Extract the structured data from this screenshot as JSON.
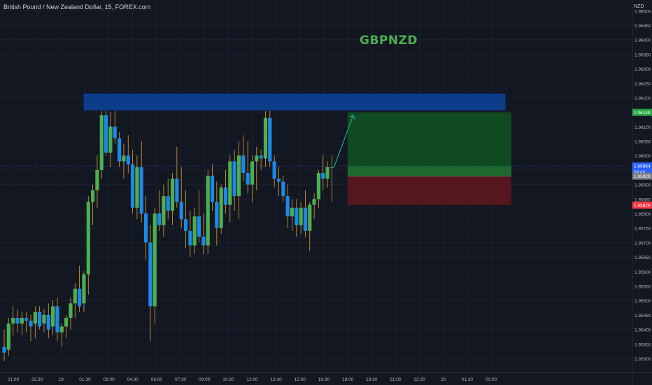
{
  "header": {
    "symbol_title": "British Pound / New Zealand Dollar, 15, FOREX.com",
    "watermark": "GBPNZD"
  },
  "price_axis": {
    "currency": "NZD",
    "ticks": [
      "1.96500",
      "1.96450",
      "1.96400",
      "1.96350",
      "1.96300",
      "1.96250",
      "1.96200",
      "1.96150",
      "1.96100",
      "1.96050",
      "1.96000",
      "1.95950",
      "1.95900",
      "1.95850",
      "1.95800",
      "1.95750",
      "1.95700",
      "1.95650",
      "1.95600",
      "1.95550",
      "1.95500",
      "1.95450",
      "1.95400",
      "1.95350",
      "1.95300"
    ],
    "badges": [
      {
        "label": "1.96149",
        "value": 1.96149,
        "color": "#26a641"
      },
      {
        "label": "1.95964",
        "value": 1.95964,
        "color": "#2962ff"
      },
      {
        "label": "04:44",
        "value": 1.95944,
        "color": "#2962ff"
      },
      {
        "label": "1.95929",
        "value": 1.95929,
        "color": "#787b86"
      },
      {
        "label": "1.95829",
        "value": 1.95829,
        "color": "#f23645"
      }
    ]
  },
  "time_axis": {
    "ticks": [
      "21:00",
      "22:30",
      "19",
      "01:30",
      "03:00",
      "04:30",
      "06:00",
      "07:30",
      "09:00",
      "10:30",
      "12:00",
      "13:30",
      "15:00",
      "16:30",
      "18:00",
      "19:30",
      "21:00",
      "22:30",
      "20",
      "01:30",
      "03:00"
    ]
  },
  "colors": {
    "background": "#131722",
    "up": "#4caf50",
    "down": "#1e88e5",
    "resistance_zone": "#0d3d8a",
    "take_profit_zone": "#0f4d22",
    "stop_loss_zone": "#5a161e",
    "current_price_line": "#2962ff",
    "projection_arrow": "#26a69a"
  },
  "chart_data": {
    "type": "candlestick",
    "symbol": "GBPNZD",
    "timeframe": "15",
    "ylim": [
      1.9529,
      1.9652
    ],
    "x_interval_minutes": 15,
    "current_price": 1.95964,
    "resistance_zone": {
      "low": 1.96155,
      "high": 1.96215
    },
    "position": {
      "type": "long",
      "entry": 1.95929,
      "take_profit": 1.96149,
      "stop_loss": 1.95829
    },
    "candles": [
      {
        "o": 1.9534,
        "h": 1.954,
        "l": 1.9529,
        "c": 1.9532
      },
      {
        "o": 1.9533,
        "h": 1.9544,
        "l": 1.9531,
        "c": 1.9542
      },
      {
        "o": 1.9542,
        "h": 1.9548,
        "l": 1.9538,
        "c": 1.9544
      },
      {
        "o": 1.9544,
        "h": 1.9547,
        "l": 1.9539,
        "c": 1.9542
      },
      {
        "o": 1.9542,
        "h": 1.9546,
        "l": 1.9538,
        "c": 1.9544
      },
      {
        "o": 1.9544,
        "h": 1.9546,
        "l": 1.9539,
        "c": 1.9543
      },
      {
        "o": 1.9543,
        "h": 1.9545,
        "l": 1.9536,
        "c": 1.9541
      },
      {
        "o": 1.9542,
        "h": 1.9548,
        "l": 1.9537,
        "c": 1.9546
      },
      {
        "o": 1.9546,
        "h": 1.9548,
        "l": 1.954,
        "c": 1.9541
      },
      {
        "o": 1.9542,
        "h": 1.9547,
        "l": 1.9539,
        "c": 1.9545
      },
      {
        "o": 1.9545,
        "h": 1.9549,
        "l": 1.9537,
        "c": 1.954
      },
      {
        "o": 1.9541,
        "h": 1.955,
        "l": 1.9538,
        "c": 1.9548
      },
      {
        "o": 1.9548,
        "h": 1.9551,
        "l": 1.9536,
        "c": 1.9539
      },
      {
        "o": 1.9539,
        "h": 1.9542,
        "l": 1.9534,
        "c": 1.9541
      },
      {
        "o": 1.9541,
        "h": 1.9545,
        "l": 1.9537,
        "c": 1.9544
      },
      {
        "o": 1.9544,
        "h": 1.9551,
        "l": 1.954,
        "c": 1.9549
      },
      {
        "o": 1.9549,
        "h": 1.9556,
        "l": 1.9544,
        "c": 1.9554
      },
      {
        "o": 1.9554,
        "h": 1.9562,
        "l": 1.9546,
        "c": 1.9548
      },
      {
        "o": 1.9549,
        "h": 1.956,
        "l": 1.9546,
        "c": 1.9559
      },
      {
        "o": 1.9559,
        "h": 1.9586,
        "l": 1.9552,
        "c": 1.9584
      },
      {
        "o": 1.9584,
        "h": 1.959,
        "l": 1.9576,
        "c": 1.9588
      },
      {
        "o": 1.9588,
        "h": 1.96,
        "l": 1.9582,
        "c": 1.9595
      },
      {
        "o": 1.9595,
        "h": 1.9616,
        "l": 1.9592,
        "c": 1.9614
      },
      {
        "o": 1.9614,
        "h": 1.9616,
        "l": 1.96,
        "c": 1.9601
      },
      {
        "o": 1.9601,
        "h": 1.9615,
        "l": 1.9596,
        "c": 1.961
      },
      {
        "o": 1.961,
        "h": 1.9617,
        "l": 1.9604,
        "c": 1.9606
      },
      {
        "o": 1.9606,
        "h": 1.9608,
        "l": 1.9596,
        "c": 1.9598
      },
      {
        "o": 1.9598,
        "h": 1.9604,
        "l": 1.9592,
        "c": 1.96
      },
      {
        "o": 1.96,
        "h": 1.9607,
        "l": 1.9594,
        "c": 1.9597
      },
      {
        "o": 1.9597,
        "h": 1.9602,
        "l": 1.958,
        "c": 1.9582
      },
      {
        "o": 1.9582,
        "h": 1.96,
        "l": 1.9578,
        "c": 1.9596
      },
      {
        "o": 1.9596,
        "h": 1.9605,
        "l": 1.9577,
        "c": 1.958
      },
      {
        "o": 1.958,
        "h": 1.9586,
        "l": 1.9564,
        "c": 1.957
      },
      {
        "o": 1.957,
        "h": 1.9576,
        "l": 1.9536,
        "c": 1.9548
      },
      {
        "o": 1.9548,
        "h": 1.9582,
        "l": 1.9542,
        "c": 1.958
      },
      {
        "o": 1.958,
        "h": 1.9588,
        "l": 1.9574,
        "c": 1.9576
      },
      {
        "o": 1.9576,
        "h": 1.959,
        "l": 1.9572,
        "c": 1.9586
      },
      {
        "o": 1.9586,
        "h": 1.9592,
        "l": 1.9578,
        "c": 1.9581
      },
      {
        "o": 1.9581,
        "h": 1.9594,
        "l": 1.9576,
        "c": 1.9592
      },
      {
        "o": 1.9592,
        "h": 1.9603,
        "l": 1.9582,
        "c": 1.9584
      },
      {
        "o": 1.9584,
        "h": 1.9596,
        "l": 1.9575,
        "c": 1.9578
      },
      {
        "o": 1.9578,
        "h": 1.9588,
        "l": 1.9568,
        "c": 1.9574
      },
      {
        "o": 1.9574,
        "h": 1.9581,
        "l": 1.9565,
        "c": 1.9569
      },
      {
        "o": 1.9569,
        "h": 1.9582,
        "l": 1.9566,
        "c": 1.9579
      },
      {
        "o": 1.9579,
        "h": 1.9588,
        "l": 1.957,
        "c": 1.9572
      },
      {
        "o": 1.9572,
        "h": 1.958,
        "l": 1.9566,
        "c": 1.9569
      },
      {
        "o": 1.9569,
        "h": 1.9595,
        "l": 1.9566,
        "c": 1.9593
      },
      {
        "o": 1.9593,
        "h": 1.9597,
        "l": 1.9581,
        "c": 1.9584
      },
      {
        "o": 1.9584,
        "h": 1.9591,
        "l": 1.9569,
        "c": 1.9575
      },
      {
        "o": 1.9575,
        "h": 1.959,
        "l": 1.9573,
        "c": 1.9589
      },
      {
        "o": 1.9589,
        "h": 1.9595,
        "l": 1.958,
        "c": 1.9583
      },
      {
        "o": 1.9583,
        "h": 1.96,
        "l": 1.9577,
        "c": 1.9598
      },
      {
        "o": 1.9598,
        "h": 1.9602,
        "l": 1.9581,
        "c": 1.9586
      },
      {
        "o": 1.9586,
        "h": 1.9605,
        "l": 1.9578,
        "c": 1.96
      },
      {
        "o": 1.96,
        "h": 1.9607,
        "l": 1.9591,
        "c": 1.9594
      },
      {
        "o": 1.9594,
        "h": 1.9605,
        "l": 1.9587,
        "c": 1.959
      },
      {
        "o": 1.959,
        "h": 1.96,
        "l": 1.9584,
        "c": 1.9598
      },
      {
        "o": 1.9598,
        "h": 1.9603,
        "l": 1.9588,
        "c": 1.96
      },
      {
        "o": 1.96,
        "h": 1.9602,
        "l": 1.9595,
        "c": 1.9599
      },
      {
        "o": 1.9599,
        "h": 1.9616,
        "l": 1.9596,
        "c": 1.9613
      },
      {
        "o": 1.9613,
        "h": 1.9617,
        "l": 1.9596,
        "c": 1.9598
      },
      {
        "o": 1.9598,
        "h": 1.96,
        "l": 1.9589,
        "c": 1.9592
      },
      {
        "o": 1.9592,
        "h": 1.9596,
        "l": 1.9586,
        "c": 1.9591
      },
      {
        "o": 1.9591,
        "h": 1.9593,
        "l": 1.9584,
        "c": 1.9586
      },
      {
        "o": 1.9586,
        "h": 1.959,
        "l": 1.9575,
        "c": 1.9579
      },
      {
        "o": 1.9579,
        "h": 1.9585,
        "l": 1.9574,
        "c": 1.9582
      },
      {
        "o": 1.9582,
        "h": 1.9585,
        "l": 1.9572,
        "c": 1.9576
      },
      {
        "o": 1.9576,
        "h": 1.9584,
        "l": 1.9573,
        "c": 1.9582
      },
      {
        "o": 1.9582,
        "h": 1.9588,
        "l": 1.9572,
        "c": 1.9574
      },
      {
        "o": 1.9574,
        "h": 1.9584,
        "l": 1.9567,
        "c": 1.9583
      },
      {
        "o": 1.9583,
        "h": 1.9587,
        "l": 1.9578,
        "c": 1.9585
      },
      {
        "o": 1.9585,
        "h": 1.9595,
        "l": 1.9582,
        "c": 1.9594
      },
      {
        "o": 1.9594,
        "h": 1.96,
        "l": 1.9588,
        "c": 1.9592
      },
      {
        "o": 1.9592,
        "h": 1.9598,
        "l": 1.9589,
        "c": 1.9596
      },
      {
        "o": 1.9596,
        "h": 1.96,
        "l": 1.9584,
        "c": 1.9596
      }
    ]
  }
}
